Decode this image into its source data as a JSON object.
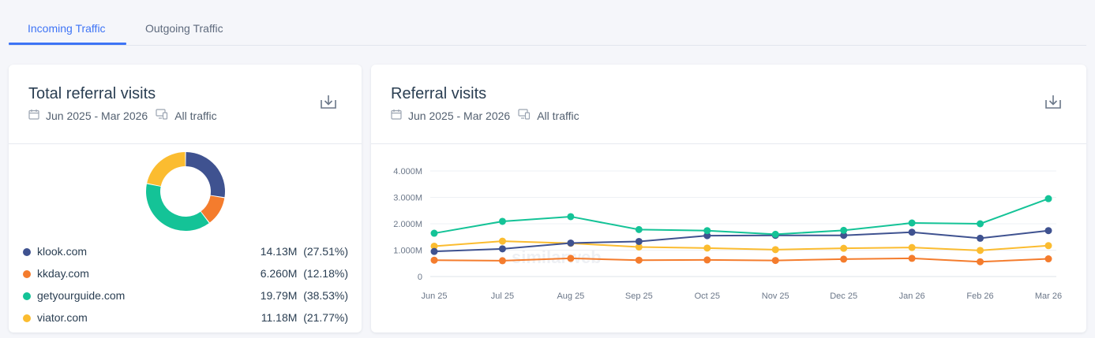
{
  "tabs": [
    {
      "label": "Incoming Traffic",
      "active": true
    },
    {
      "label": "Outgoing Traffic",
      "active": false
    }
  ],
  "left_card": {
    "title": "Total referral visits",
    "date_range": "Jun 2025 - Mar 2026",
    "traffic": "All traffic",
    "legend": [
      {
        "name": "klook.com",
        "value": "14.13M",
        "share": "(27.51%)",
        "color": "#3f5290"
      },
      {
        "name": "kkday.com",
        "value": "6.260M",
        "share": "(12.18%)",
        "color": "#f47c2d"
      },
      {
        "name": "getyourguide.com",
        "value": "19.79M",
        "share": "(38.53%)",
        "color": "#14c397"
      },
      {
        "name": "viator.com",
        "value": "11.18M",
        "share": "(21.77%)",
        "color": "#fbbc30"
      }
    ]
  },
  "right_card": {
    "title": "Referral visits",
    "date_range": "Jun 2025 - Mar 2026",
    "traffic": "All traffic",
    "watermark": "similarweb"
  },
  "chart_data": {
    "type": "line",
    "categories": [
      "Jun 25",
      "Jul 25",
      "Aug 25",
      "Sep 25",
      "Oct 25",
      "Nov 25",
      "Dec 25",
      "Jan 26",
      "Feb 26",
      "Mar 26"
    ],
    "y_ticks": [
      "0",
      "1.000M",
      "2.000M",
      "3.000M",
      "4.000M"
    ],
    "ylim": [
      0,
      4000000
    ],
    "grid": true,
    "series": [
      {
        "name": "klook.com",
        "color": "#3f5290",
        "values": [
          950000,
          1050000,
          1270000,
          1330000,
          1550000,
          1560000,
          1560000,
          1680000,
          1450000,
          1740000
        ]
      },
      {
        "name": "kkday.com",
        "color": "#f47c2d",
        "values": [
          620000,
          600000,
          690000,
          620000,
          630000,
          610000,
          660000,
          690000,
          560000,
          670000
        ]
      },
      {
        "name": "getyourguide.com",
        "color": "#14c397",
        "values": [
          1640000,
          2090000,
          2270000,
          1780000,
          1740000,
          1600000,
          1750000,
          2030000,
          2000000,
          2950000
        ]
      },
      {
        "name": "viator.com",
        "color": "#fbbc30",
        "values": [
          1150000,
          1340000,
          1260000,
          1120000,
          1080000,
          1020000,
          1070000,
          1100000,
          990000,
          1170000
        ]
      }
    ]
  }
}
